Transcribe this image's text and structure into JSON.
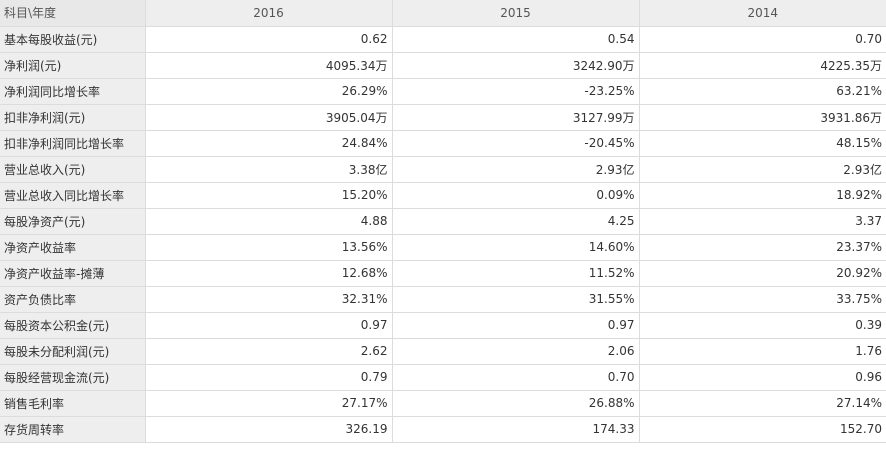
{
  "table": {
    "corner_header": "科目\\年度",
    "years": [
      "2016",
      "2015",
      "2014"
    ],
    "rows": [
      {
        "label": "基本每股收益(元)",
        "values": [
          "0.62",
          "0.54",
          "0.70"
        ]
      },
      {
        "label": "净利润(元)",
        "values": [
          "4095.34万",
          "3242.90万",
          "4225.35万"
        ]
      },
      {
        "label": "净利润同比增长率",
        "values": [
          "26.29%",
          "-23.25%",
          "63.21%"
        ]
      },
      {
        "label": "扣非净利润(元)",
        "values": [
          "3905.04万",
          "3127.99万",
          "3931.86万"
        ]
      },
      {
        "label": "扣非净利润同比增长率",
        "values": [
          "24.84%",
          "-20.45%",
          "48.15%"
        ]
      },
      {
        "label": "营业总收入(元)",
        "values": [
          "3.38亿",
          "2.93亿",
          "2.93亿"
        ]
      },
      {
        "label": "营业总收入同比增长率",
        "values": [
          "15.20%",
          "0.09%",
          "18.92%"
        ]
      },
      {
        "label": "每股净资产(元)",
        "values": [
          "4.88",
          "4.25",
          "3.37"
        ]
      },
      {
        "label": "净资产收益率",
        "values": [
          "13.56%",
          "14.60%",
          "23.37%"
        ]
      },
      {
        "label": "净资产收益率-摊薄",
        "values": [
          "12.68%",
          "11.52%",
          "20.92%"
        ]
      },
      {
        "label": "资产负债比率",
        "values": [
          "32.31%",
          "31.55%",
          "33.75%"
        ]
      },
      {
        "label": "每股资本公积金(元)",
        "values": [
          "0.97",
          "0.97",
          "0.39"
        ]
      },
      {
        "label": "每股未分配利润(元)",
        "values": [
          "2.62",
          "2.06",
          "1.76"
        ]
      },
      {
        "label": "每股经营现金流(元)",
        "values": [
          "0.79",
          "0.70",
          "0.96"
        ]
      },
      {
        "label": "销售毛利率",
        "values": [
          "27.17%",
          "26.88%",
          "27.14%"
        ]
      },
      {
        "label": "存货周转率",
        "values": [
          "326.19",
          "174.33",
          "152.70"
        ]
      }
    ]
  }
}
